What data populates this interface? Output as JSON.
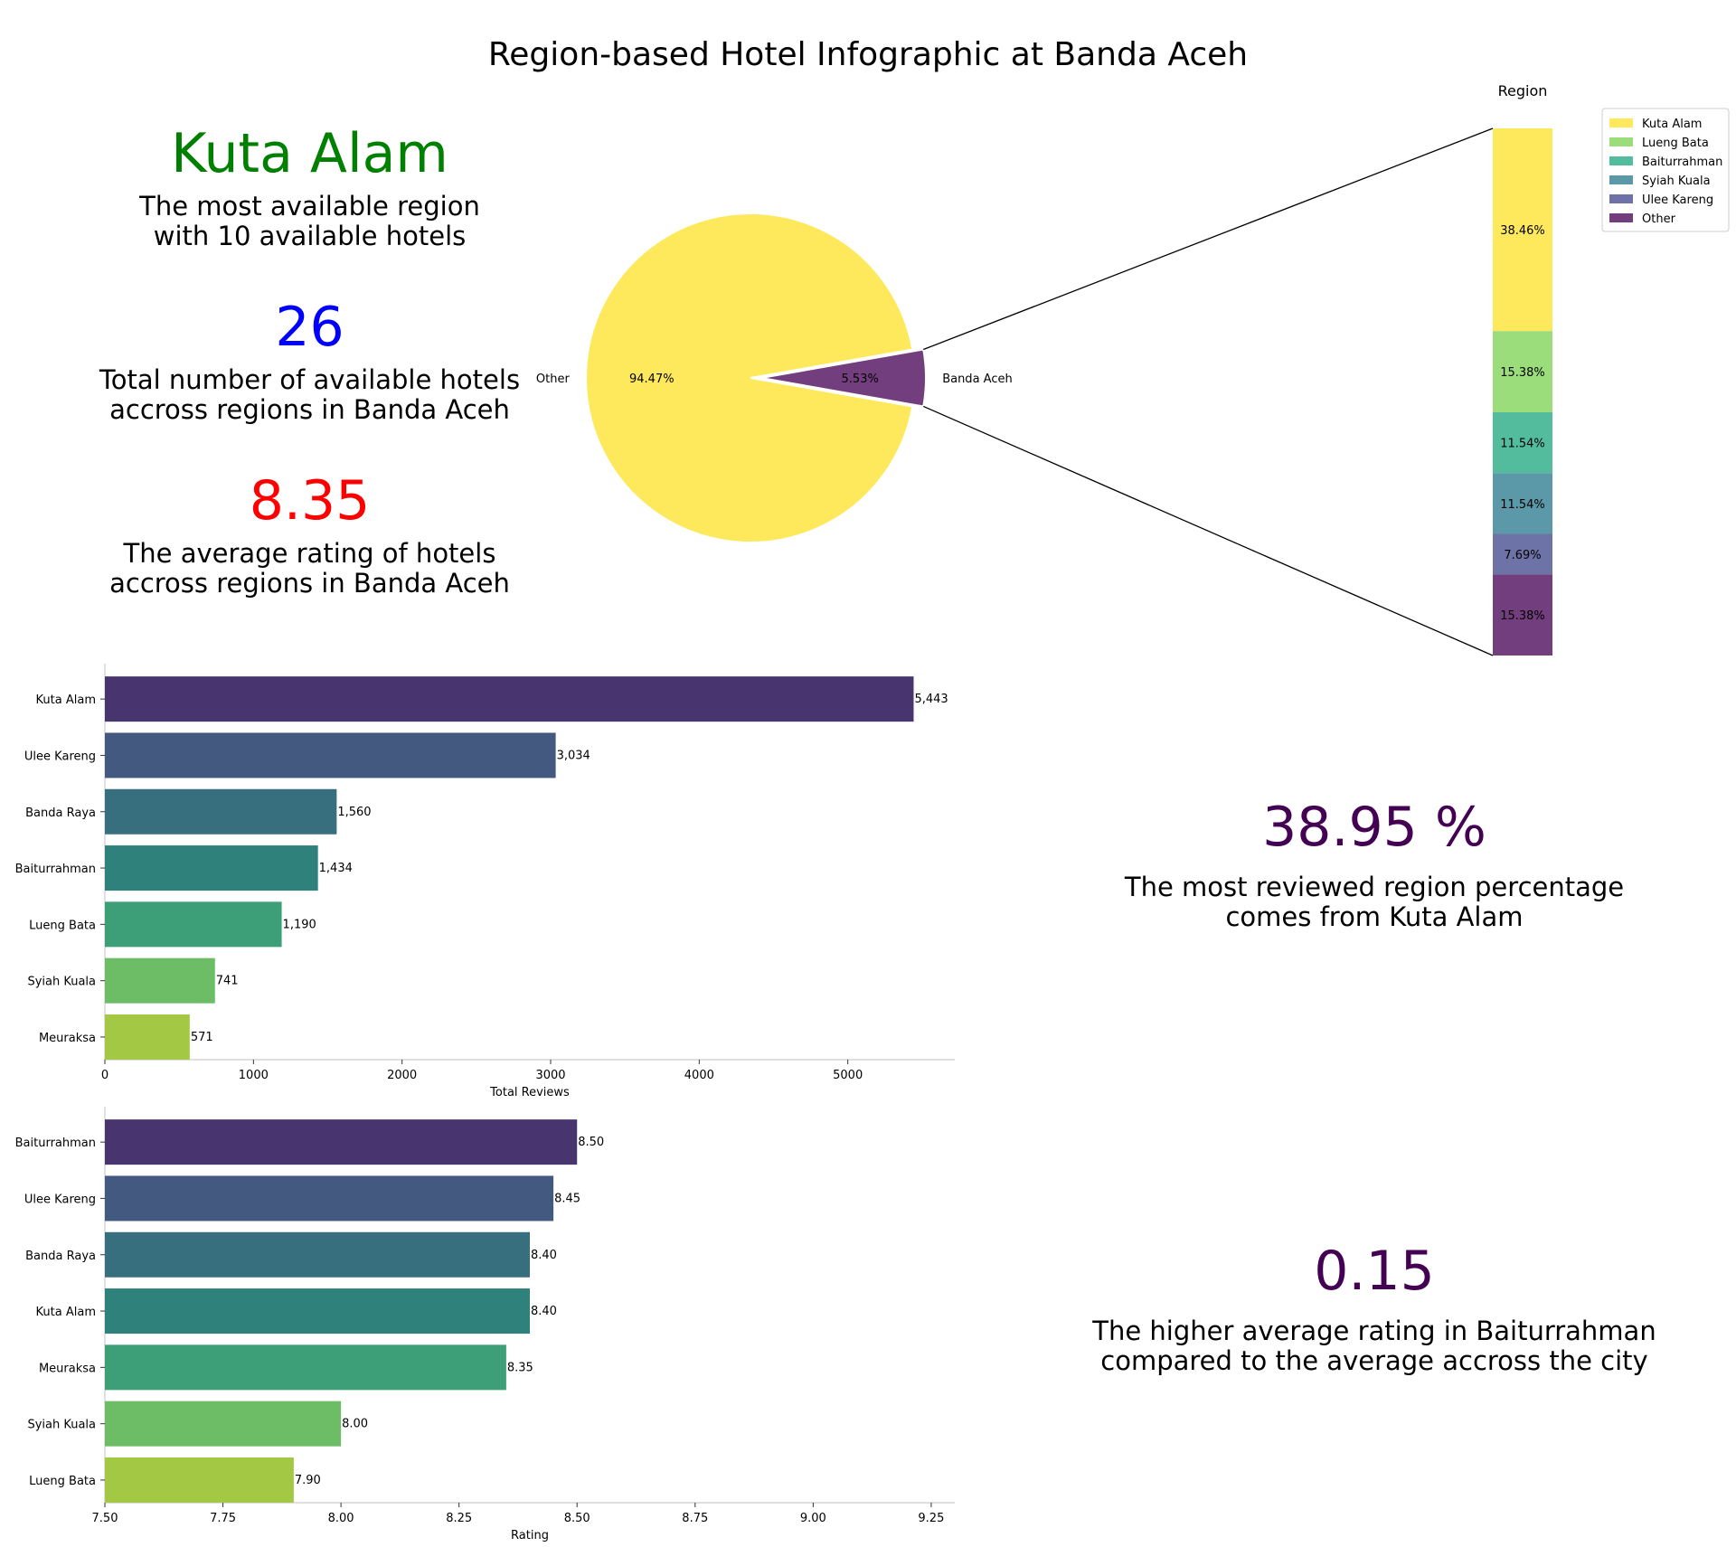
{
  "title": "Region-based Hotel Infographic at Banda Aceh",
  "colors": {
    "green_text": "#008000",
    "blue_text": "#0000ff",
    "red_text": "#ff0000",
    "purple_text": "#440154",
    "pie_other": "#fde95b",
    "pie_banda_aceh": "#733e7e",
    "viridis_7": [
      "#48356f",
      "#44597f",
      "#376f7f",
      "#2e827b",
      "#3c9f78",
      "#6dbd67",
      "#a3c944"
    ]
  },
  "stats": {
    "top_region": "Kuta Alam",
    "top_region_desc_line1": "The most available region",
    "top_region_desc_line2": "with 10 available hotels",
    "total_hotels": "26",
    "total_hotels_desc_line1": "Total number of available hotels",
    "total_hotels_desc_line2": "accross regions in Banda Aceh",
    "avg_rating": "8.35",
    "avg_rating_desc_line1": "The average rating of hotels",
    "avg_rating_desc_line2": "accross regions in Banda Aceh",
    "review_pct": "38.95 %",
    "review_pct_desc_line1": "The most reviewed region percentage",
    "review_pct_desc_line2": "comes from Kuta Alam",
    "rating_diff": "0.15",
    "rating_diff_desc_line1": "The higher average rating in Baiturrahman",
    "rating_diff_desc_line2": "compared to the average accross the city"
  },
  "chart_data": [
    {
      "type": "pie",
      "labels": [
        "Other",
        "Banda Aceh"
      ],
      "values": [
        94.47,
        5.53
      ],
      "value_labels": [
        "94.47%",
        "5.53%"
      ],
      "colors": [
        "#fde95b",
        "#733e7e"
      ]
    },
    {
      "type": "bar",
      "orientation": "stacked-vertical",
      "title": "Region",
      "categories": [
        "Kuta Alam",
        "Lueng Bata",
        "Baiturrahman",
        "Syiah Kuala",
        "Ulee Kareng",
        "Other"
      ],
      "values": [
        38.46,
        15.38,
        11.54,
        11.54,
        7.69,
        15.38
      ],
      "value_labels": [
        "38.46%",
        "15.38%",
        "11.54%",
        "11.54%",
        "7.69%",
        "15.38%"
      ],
      "colors": [
        "#fde95b",
        "#9bdd7a",
        "#52bc9c",
        "#5b99a8",
        "#6d72a7",
        "#733e7e"
      ],
      "legend": "top-right"
    },
    {
      "type": "bar",
      "orientation": "horizontal",
      "categories": [
        "Kuta Alam",
        "Ulee Kareng",
        "Banda Raya",
        "Baiturrahman",
        "Lueng Bata",
        "Syiah Kuala",
        "Meuraksa"
      ],
      "values": [
        5443,
        3034,
        1560,
        1434,
        1190,
        741,
        571
      ],
      "value_labels": [
        "5,443",
        "3,034",
        "1,560",
        "1,434",
        "1,190",
        "741",
        "571"
      ],
      "xlabel": "Total Reviews",
      "xlim": [
        0,
        5720
      ],
      "xticks": [
        0,
        1000,
        2000,
        3000,
        4000,
        5000
      ],
      "xtick_labels": [
        "0",
        "1000",
        "2000",
        "3000",
        "4000",
        "5000"
      ]
    },
    {
      "type": "bar",
      "orientation": "horizontal",
      "categories": [
        "Baiturrahman",
        "Ulee Kareng",
        "Banda Raya",
        "Kuta Alam",
        "Meuraksa",
        "Syiah Kuala",
        "Lueng Bata"
      ],
      "values": [
        8.5,
        8.45,
        8.4,
        8.4,
        8.35,
        8.0,
        7.9
      ],
      "value_labels": [
        "8.50",
        "8.45",
        "8.40",
        "8.40",
        "8.35",
        "8.00",
        "7.90"
      ],
      "xlabel": "Rating",
      "xlim": [
        7.5,
        9.3
      ],
      "xticks": [
        7.5,
        7.75,
        8.0,
        8.25,
        8.5,
        8.75,
        9.0,
        9.25
      ],
      "xtick_labels": [
        "7.50",
        "7.75",
        "8.00",
        "8.25",
        "8.50",
        "8.75",
        "9.00",
        "9.25"
      ]
    }
  ]
}
